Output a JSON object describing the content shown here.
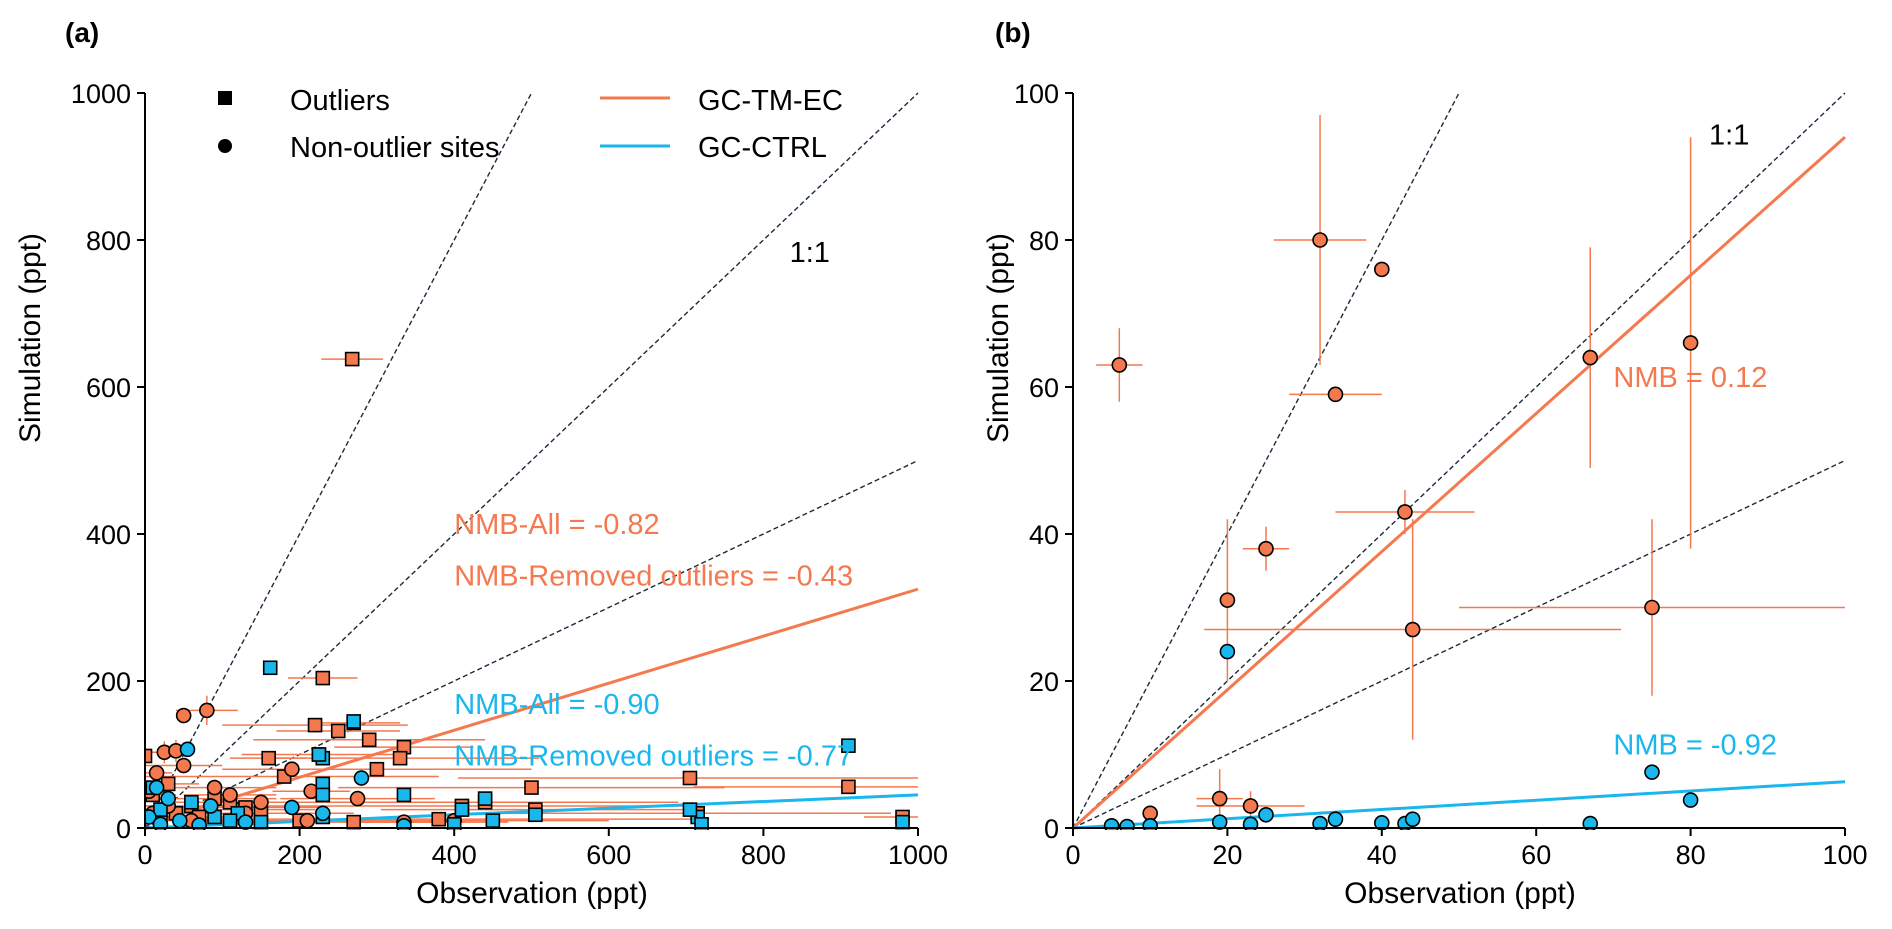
{
  "colors": {
    "tm_ec": "#f4794f",
    "ctrl": "#1ab7ec",
    "marker_edge": "#000000",
    "ref_line": "#1b2a3a"
  },
  "legend": {
    "markers": [
      {
        "shape": "square",
        "label": "Outliers"
      },
      {
        "shape": "circle",
        "label": "Non-outlier sites"
      }
    ],
    "lines": [
      {
        "series": "tm_ec",
        "label": "GC-TM-EC"
      },
      {
        "series": "ctrl",
        "label": "GC-CTRL"
      }
    ]
  },
  "chart_data": [
    {
      "panel": "(a)",
      "type": "scatter",
      "title": "",
      "xlabel": "Observation (ppt)",
      "ylabel": "Simulation (ppt)",
      "xlim": [
        0,
        1000
      ],
      "ylim": [
        0,
        1000
      ],
      "xticks": [
        0,
        200,
        400,
        600,
        800,
        1000
      ],
      "yticks": [
        0,
        200,
        400,
        600,
        800,
        1000
      ],
      "reference_lines": [
        {
          "label": "1:1",
          "slope": 1
        },
        {
          "label": "",
          "slope": 2
        },
        {
          "label": "",
          "slope": 0.5
        }
      ],
      "ratio_label": {
        "text": "1:1",
        "x": 860,
        "y": 770
      },
      "fit_lines": [
        {
          "series": "tm_ec",
          "slope": 0.32,
          "intercept": 5
        },
        {
          "series": "ctrl",
          "slope": 0.045,
          "intercept": 0
        }
      ],
      "annotations": [
        {
          "series": "tm_ec",
          "text": "NMB-All = -0.82",
          "x": 400,
          "y": 400
        },
        {
          "series": "tm_ec",
          "text": "NMB-Removed outliers = -0.43",
          "x": 400,
          "y": 330
        },
        {
          "series": "ctrl",
          "text": "NMB-All = -0.90",
          "x": 400,
          "y": 155
        },
        {
          "series": "ctrl",
          "text": "NMB-Removed outliers = -0.77",
          "x": 400,
          "y": 85
        }
      ],
      "series": [
        {
          "series": "tm_ec",
          "marker": "square",
          "name": "",
          "points": [
            [
              268,
              638,
              40,
              0
            ],
            [
              230,
              204,
              45,
              0
            ],
            [
              160,
              95,
              50,
              0
            ],
            [
              220,
              140,
              120,
              0
            ],
            [
              250,
              132,
              80,
              0
            ],
            [
              270,
              143,
              60,
              0
            ],
            [
              290,
              120,
              150,
              0
            ],
            [
              335,
              110,
              90,
              0
            ],
            [
              300,
              80,
              200,
              0
            ],
            [
              330,
              95,
              180,
              0
            ],
            [
              180,
              70,
              200,
              0
            ],
            [
              225,
              100,
              100,
              0
            ],
            [
              500,
              55,
              250,
              0
            ],
            [
              705,
              68,
              300,
              0
            ],
            [
              910,
              56,
              200,
              0
            ],
            [
              980,
              15,
              50,
              0
            ],
            [
              410,
              30,
              300,
              0
            ],
            [
              440,
              35,
              250,
              0
            ],
            [
              505,
              25,
              200,
              0
            ],
            [
              715,
              20,
              250,
              0
            ],
            [
              380,
              12,
              350,
              0
            ],
            [
              120,
              25,
              100,
              0
            ],
            [
              90,
              40,
              80,
              0
            ],
            [
              60,
              30,
              60,
              0
            ],
            [
              40,
              20,
              80,
              0
            ],
            [
              20,
              15,
              40,
              0
            ],
            [
              10,
              45,
              30,
              0
            ],
            [
              150,
              20,
              120,
              0
            ],
            [
              200,
              10,
              180,
              0
            ],
            [
              270,
              8,
              200,
              0
            ],
            [
              110,
              35,
              90,
              0
            ],
            [
              70,
              15,
              70,
              0
            ],
            [
              0,
              98,
              0,
              0
            ],
            [
              30,
              60,
              40,
              0
            ],
            [
              130,
              28,
              100,
              0
            ]
          ]
        },
        {
          "series": "tm_ec",
          "marker": "circle",
          "name": "",
          "points": [
            [
              80,
              160,
              40,
              20
            ],
            [
              50,
              153,
              0,
              0
            ],
            [
              25,
              103,
              30,
              15
            ],
            [
              40,
              105,
              20,
              15
            ],
            [
              50,
              85,
              50,
              0
            ],
            [
              90,
              55,
              80,
              0
            ],
            [
              110,
              45,
              60,
              0
            ],
            [
              150,
              35,
              100,
              0
            ],
            [
              190,
              80,
              60,
              0
            ],
            [
              215,
              50,
              50,
              0
            ],
            [
              275,
              40,
              100,
              0
            ],
            [
              15,
              75,
              20,
              0
            ],
            [
              5,
              50,
              0,
              0
            ],
            [
              30,
              30,
              40,
              0
            ],
            [
              130,
              20,
              80,
              0
            ],
            [
              60,
              10,
              50,
              0
            ],
            [
              10,
              20,
              0,
              0
            ],
            [
              335,
              8,
              80,
              0
            ],
            [
              210,
              10,
              60,
              0
            ],
            [
              400,
              10,
              200,
              0
            ]
          ]
        },
        {
          "series": "ctrl",
          "marker": "square",
          "name": "",
          "points": [
            [
              162,
              218,
              0,
              0
            ],
            [
              230,
              95,
              0,
              0
            ],
            [
              270,
              145,
              0,
              0
            ],
            [
              225,
              100,
              0,
              0
            ],
            [
              230,
              60,
              0,
              0
            ],
            [
              230,
              45,
              0,
              0
            ],
            [
              335,
              45,
              0,
              0
            ],
            [
              440,
              40,
              0,
              0
            ],
            [
              410,
              25,
              0,
              0
            ],
            [
              505,
              18,
              0,
              0
            ],
            [
              715,
              15,
              0,
              0
            ],
            [
              705,
              25,
              0,
              0
            ],
            [
              910,
              112,
              0,
              0
            ],
            [
              980,
              8,
              0,
              0
            ],
            [
              720,
              5,
              0,
              0
            ],
            [
              450,
              10,
              0,
              0
            ],
            [
              400,
              5,
              0,
              0
            ],
            [
              120,
              20,
              0,
              0
            ],
            [
              60,
              35,
              0,
              0
            ],
            [
              90,
              15,
              0,
              0
            ],
            [
              20,
              25,
              0,
              0
            ],
            [
              150,
              8,
              0,
              0
            ],
            [
              230,
              15,
              0,
              0
            ],
            [
              10,
              55,
              0,
              0
            ],
            [
              110,
              10,
              0,
              0
            ]
          ]
        },
        {
          "series": "ctrl",
          "marker": "circle",
          "name": "",
          "points": [
            [
              55,
              107,
              0,
              0
            ],
            [
              280,
              68,
              0,
              0
            ],
            [
              15,
              55,
              0,
              0
            ],
            [
              30,
              40,
              0,
              0
            ],
            [
              85,
              30,
              0,
              0
            ],
            [
              190,
              28,
              0,
              0
            ],
            [
              230,
              20,
              0,
              0
            ],
            [
              5,
              15,
              0,
              0
            ],
            [
              45,
              10,
              0,
              0
            ],
            [
              130,
              8,
              0,
              0
            ],
            [
              335,
              3,
              0,
              0
            ],
            [
              20,
              5,
              0,
              0
            ],
            [
              70,
              4,
              0,
              0
            ]
          ]
        }
      ]
    },
    {
      "panel": "(b)",
      "type": "scatter",
      "title": "",
      "xlabel": "Observation (ppt)",
      "ylabel": "Simulation (ppt)",
      "xlim": [
        0,
        100
      ],
      "ylim": [
        0,
        100
      ],
      "xticks": [
        0,
        20,
        40,
        60,
        80,
        100
      ],
      "yticks": [
        0,
        20,
        40,
        60,
        80,
        100
      ],
      "reference_lines": [
        {
          "label": "1:1",
          "slope": 1
        },
        {
          "label": "",
          "slope": 2
        },
        {
          "label": "",
          "slope": 0.5
        }
      ],
      "ratio_label": {
        "text": "1:1",
        "x": 85,
        "y": 93
      },
      "fit_lines": [
        {
          "series": "tm_ec",
          "slope": 0.94,
          "intercept": 0
        },
        {
          "series": "ctrl",
          "slope": 0.063,
          "intercept": 0
        }
      ],
      "annotations": [
        {
          "series": "tm_ec",
          "text": "NMB = 0.12",
          "x": 70,
          "y": 60
        },
        {
          "series": "ctrl",
          "text": "NMB = -0.92",
          "x": 70,
          "y": 10
        }
      ],
      "series": [
        {
          "series": "tm_ec",
          "marker": "circle",
          "name": "",
          "points": [
            [
              6,
              63,
              3,
              5
            ],
            [
              32,
              80,
              6,
              17
            ],
            [
              40,
              76,
              0,
              0
            ],
            [
              34,
              59,
              6,
              0
            ],
            [
              43,
              43,
              9,
              3
            ],
            [
              25,
              38,
              3,
              3
            ],
            [
              20,
              31,
              0,
              11
            ],
            [
              44,
              27,
              27,
              15
            ],
            [
              75,
              30,
              25,
              12
            ],
            [
              67,
              64,
              0,
              15
            ],
            [
              80,
              66,
              0,
              28
            ],
            [
              19,
              4,
              3,
              4
            ],
            [
              23,
              3,
              7,
              2
            ],
            [
              10,
              2,
              0,
              0
            ]
          ]
        },
        {
          "series": "ctrl",
          "marker": "circle",
          "name": "",
          "points": [
            [
              20,
              24,
              0,
              0
            ],
            [
              5,
              0.3,
              0,
              0
            ],
            [
              7,
              0.2,
              0,
              0
            ],
            [
              10,
              0.3,
              0,
              0
            ],
            [
              19,
              0.8,
              0,
              0
            ],
            [
              23,
              0.5,
              0,
              0
            ],
            [
              25,
              1.8,
              0,
              0
            ],
            [
              32,
              0.6,
              0,
              0
            ],
            [
              34,
              1.2,
              0,
              0
            ],
            [
              40,
              0.7,
              0,
              0
            ],
            [
              43,
              0.6,
              0,
              0
            ],
            [
              44,
              1.2,
              0,
              0
            ],
            [
              67,
              0.6,
              0,
              0
            ],
            [
              75,
              7.6,
              0,
              0
            ],
            [
              80,
              3.8,
              0,
              0
            ]
          ]
        }
      ]
    }
  ]
}
